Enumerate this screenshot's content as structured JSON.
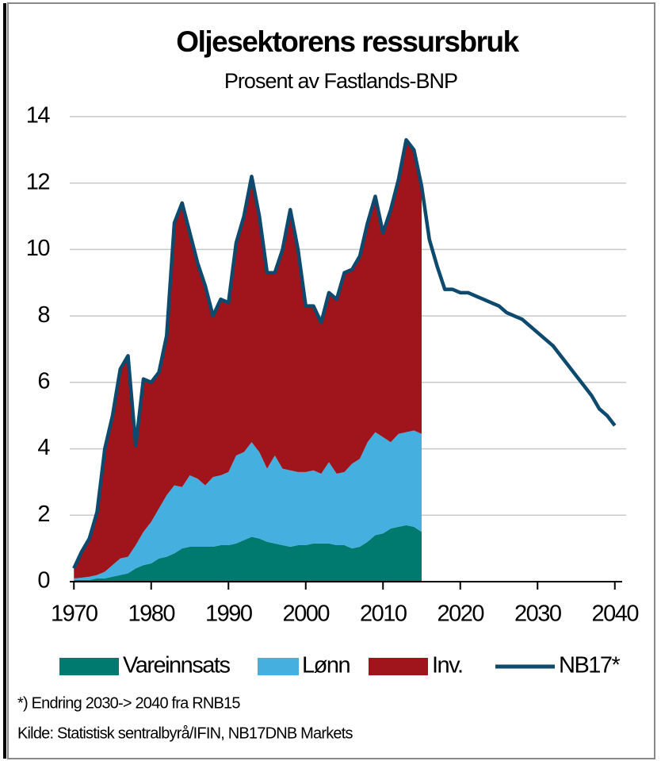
{
  "chart_data": {
    "type": "stacked_area_line",
    "title": "Oljesektorens ressursbruk",
    "subtitle": "Prosent av Fastlands-BNP",
    "notes": [
      "*) Endring 2030-> 2040 fra RNB15",
      "Kilde: Statistisk sentralbyrå/IFIN,  NB17DNB Markets"
    ],
    "x": [
      1970,
      1971,
      1972,
      1973,
      1974,
      1975,
      1976,
      1977,
      1978,
      1979,
      1980,
      1981,
      1982,
      1983,
      1984,
      1985,
      1986,
      1987,
      1988,
      1989,
      1990,
      1991,
      1992,
      1993,
      1994,
      1995,
      1996,
      1997,
      1998,
      1999,
      2000,
      2001,
      2002,
      2003,
      2004,
      2005,
      2006,
      2007,
      2008,
      2009,
      2010,
      2011,
      2012,
      2013,
      2014,
      2015,
      2016,
      2017,
      2018,
      2019,
      2020,
      2021,
      2022,
      2023,
      2024,
      2025,
      2026,
      2027,
      2028,
      2029,
      2030,
      2031,
      2032,
      2033,
      2034,
      2035,
      2036,
      2037,
      2038,
      2039,
      2040
    ],
    "series": [
      {
        "name": "Vareinnsats",
        "color": "#007a6e",
        "kind": "area",
        "values": [
          0.05,
          0.05,
          0.05,
          0.1,
          0.1,
          0.15,
          0.2,
          0.25,
          0.4,
          0.5,
          0.55,
          0.7,
          0.75,
          0.85,
          1.0,
          1.05,
          1.05,
          1.05,
          1.05,
          1.1,
          1.1,
          1.15,
          1.25,
          1.35,
          1.3,
          1.2,
          1.15,
          1.1,
          1.05,
          1.1,
          1.1,
          1.15,
          1.15,
          1.15,
          1.1,
          1.1,
          1.0,
          1.05,
          1.2,
          1.4,
          1.45,
          1.6,
          1.65,
          1.7,
          1.65,
          1.5,
          null,
          null,
          null,
          null,
          null,
          null,
          null,
          null,
          null,
          null,
          null,
          null,
          null,
          null,
          null,
          null,
          null,
          null,
          null,
          null,
          null,
          null,
          null,
          null,
          null
        ]
      },
      {
        "name": "Lønn",
        "color": "#45b0e0",
        "kind": "area",
        "values": [
          0.05,
          0.07,
          0.1,
          0.1,
          0.2,
          0.35,
          0.5,
          0.5,
          0.7,
          1.0,
          1.25,
          1.5,
          1.85,
          2.05,
          1.85,
          2.15,
          2.05,
          1.85,
          2.1,
          2.1,
          2.2,
          2.65,
          2.65,
          2.85,
          2.6,
          2.2,
          2.65,
          2.3,
          2.3,
          2.2,
          2.2,
          2.2,
          2.1,
          2.45,
          2.15,
          2.2,
          2.55,
          2.65,
          3.0,
          3.1,
          2.9,
          2.6,
          2.8,
          2.8,
          2.9,
          2.95,
          null,
          null,
          null,
          null,
          null,
          null,
          null,
          null,
          null,
          null,
          null,
          null,
          null,
          null,
          null,
          null,
          null,
          null,
          null,
          null,
          null,
          null,
          null,
          null,
          null
        ]
      },
      {
        "name": "Inv.",
        "color": "#a0141c",
        "kind": "area",
        "values": [
          0.3,
          0.78,
          1.15,
          1.9,
          3.7,
          4.5,
          5.7,
          6.05,
          3.0,
          4.6,
          4.2,
          4.1,
          4.8,
          7.9,
          8.55,
          7.3,
          6.5,
          6.0,
          4.85,
          5.3,
          5.1,
          6.4,
          7.1,
          8.0,
          7.1,
          5.9,
          5.5,
          6.6,
          7.85,
          6.7,
          5.0,
          4.95,
          4.55,
          5.1,
          5.25,
          6.0,
          5.85,
          6.1,
          6.6,
          7.1,
          6.15,
          7.0,
          7.65,
          8.8,
          8.45,
          7.45,
          null,
          null,
          null,
          null,
          null,
          null,
          null,
          null,
          null,
          null,
          null,
          null,
          null,
          null,
          null,
          null,
          null,
          null,
          null,
          null,
          null,
          null,
          null,
          null,
          null
        ]
      },
      {
        "name": "NB17*",
        "color": "#0d4a6e",
        "kind": "line",
        "values": [
          0.4,
          0.9,
          1.3,
          2.1,
          4.0,
          5.0,
          6.4,
          6.8,
          4.1,
          6.1,
          6.0,
          6.3,
          7.4,
          10.8,
          11.4,
          10.5,
          9.6,
          8.9,
          8.0,
          8.5,
          8.4,
          10.2,
          11.0,
          12.2,
          11.0,
          9.3,
          9.3,
          10.0,
          11.2,
          10.0,
          8.3,
          8.3,
          7.8,
          8.7,
          8.5,
          9.3,
          9.4,
          9.8,
          10.8,
          11.6,
          10.5,
          11.2,
          12.1,
          13.3,
          13.0,
          11.9,
          10.3,
          9.5,
          8.8,
          8.8,
          8.7,
          8.7,
          8.6,
          8.5,
          8.4,
          8.3,
          8.1,
          8.0,
          7.9,
          7.7,
          7.5,
          7.3,
          7.1,
          6.8,
          6.5,
          6.2,
          5.9,
          5.6,
          5.2,
          5.0,
          4.7
        ]
      }
    ],
    "xlim": [
      1969,
      2041
    ],
    "xticks": [
      1970,
      1980,
      1990,
      2000,
      2010,
      2020,
      2030,
      2040
    ],
    "ylim": [
      0,
      14
    ],
    "yticks": [
      0,
      2,
      4,
      6,
      8,
      10,
      12,
      14
    ],
    "grid": true,
    "legend": "bottom"
  }
}
